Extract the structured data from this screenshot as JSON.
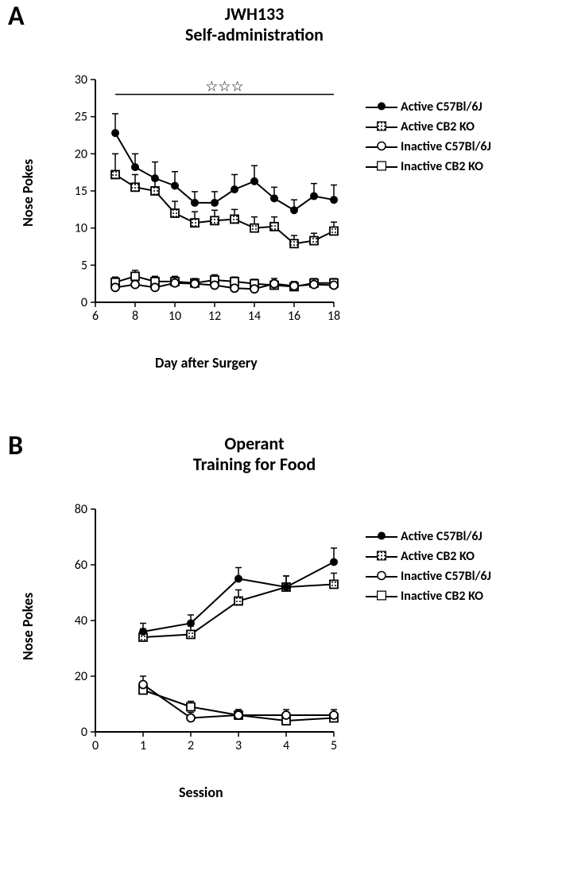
{
  "panelA": {
    "label": "A",
    "label_fontsize": 34,
    "title_line1": "JWH133",
    "title_line2": "Self-administration",
    "title_fontsize": 22,
    "xlabel": "Day after Surgery",
    "ylabel": "Nose Pokes",
    "label_fontsize_axis": 18,
    "tick_fontsize": 16,
    "xlim": [
      6,
      18
    ],
    "ylim": [
      0,
      30
    ],
    "xticks": [
      6,
      8,
      10,
      12,
      14,
      16,
      18
    ],
    "yticks": [
      0,
      5,
      10,
      15,
      20,
      25,
      30
    ],
    "sig_label": "☆☆☆",
    "sig_y": 28,
    "sig_x_start": 7,
    "sig_x_end": 18,
    "legend_fontsize": 16,
    "legend_items": [
      {
        "label": "Active C57Bl/6J",
        "marker": "circle-filled"
      },
      {
        "label": "Active CB2 KO",
        "marker": "square-hatched"
      },
      {
        "label": "Inactive C57Bl/6J",
        "marker": "circle-open"
      },
      {
        "label": "Inactive CB2 KO",
        "marker": "square-open"
      }
    ],
    "series": {
      "active_c57": {
        "marker": "circle-filled",
        "x": [
          7,
          8,
          9,
          10,
          11,
          12,
          13,
          14,
          15,
          16,
          17,
          18
        ],
        "y": [
          22.8,
          18.2,
          16.7,
          15.7,
          13.4,
          13.4,
          15.2,
          16.3,
          14.0,
          12.4,
          14.3,
          13.8
        ],
        "err": [
          2.6,
          1.8,
          2.2,
          1.9,
          1.5,
          1.5,
          2.0,
          2.1,
          1.5,
          1.4,
          1.7,
          2.0
        ]
      },
      "active_cb2": {
        "marker": "square-hatched",
        "x": [
          7,
          8,
          9,
          10,
          11,
          12,
          13,
          14,
          15,
          16,
          17,
          18
        ],
        "y": [
          17.2,
          15.5,
          15.0,
          12.0,
          10.7,
          11.0,
          11.2,
          10.0,
          10.2,
          7.9,
          8.3,
          9.6
        ],
        "err": [
          2.8,
          1.7,
          1.4,
          1.6,
          1.5,
          1.4,
          1.3,
          1.5,
          1.3,
          1.1,
          1.0,
          1.2
        ]
      },
      "inactive_c57": {
        "marker": "circle-open",
        "x": [
          7,
          8,
          9,
          10,
          11,
          12,
          13,
          14,
          15,
          16,
          17,
          18
        ],
        "y": [
          2.0,
          2.4,
          2.0,
          2.6,
          2.5,
          2.3,
          1.9,
          1.8,
          2.5,
          2.2,
          2.4,
          2.3
        ],
        "err": [
          0.7,
          0.6,
          0.6,
          0.7,
          0.6,
          0.6,
          0.6,
          0.5,
          0.7,
          0.6,
          0.6,
          0.6
        ]
      },
      "inactive_cb2": {
        "marker": "square-open",
        "x": [
          7,
          8,
          9,
          10,
          11,
          12,
          13,
          14,
          15,
          16,
          17,
          18
        ],
        "y": [
          2.7,
          3.5,
          2.8,
          2.8,
          2.6,
          3.0,
          2.8,
          2.5,
          2.3,
          2.1,
          2.6,
          2.6
        ],
        "err": [
          0.7,
          0.8,
          0.7,
          0.7,
          0.6,
          0.7,
          0.6,
          0.6,
          0.6,
          0.6,
          0.6,
          0.6
        ]
      }
    },
    "axis_color": "#000000",
    "line_color": "#000000",
    "marker_size": 10,
    "line_width": 2
  },
  "panelB": {
    "label": "B",
    "label_fontsize": 34,
    "title_line1": "Operant",
    "title_line2": "Training for Food",
    "title_fontsize": 22,
    "xlabel": "Session",
    "ylabel": "Nose Pokes",
    "label_fontsize_axis": 18,
    "tick_fontsize": 16,
    "xlim": [
      0,
      5
    ],
    "ylim": [
      0,
      80
    ],
    "xticks": [
      0,
      1,
      2,
      3,
      4,
      5
    ],
    "yticks": [
      0,
      20,
      40,
      60,
      80
    ],
    "legend_fontsize": 16,
    "legend_items": [
      {
        "label": "Active C57Bl/6J",
        "marker": "circle-filled"
      },
      {
        "label": "Active CB2 KO",
        "marker": "square-hatched"
      },
      {
        "label": "Inactive C57Bl/6J",
        "marker": "circle-open"
      },
      {
        "label": "Inactive CB2 KO",
        "marker": "square-open"
      }
    ],
    "series": {
      "active_c57": {
        "marker": "circle-filled",
        "x": [
          1,
          2,
          3,
          4,
          5
        ],
        "y": [
          36,
          39,
          55,
          52,
          61
        ],
        "err": [
          3,
          3,
          4,
          4,
          5
        ]
      },
      "active_cb2": {
        "marker": "square-hatched",
        "x": [
          1,
          2,
          3,
          4,
          5
        ],
        "y": [
          34,
          35,
          47,
          52,
          53
        ],
        "err": [
          3,
          3,
          4,
          4,
          4
        ]
      },
      "inactive_c57": {
        "marker": "circle-open",
        "x": [
          1,
          2,
          3,
          4,
          5
        ],
        "y": [
          17,
          5,
          6,
          6,
          6
        ],
        "err": [
          3,
          2,
          2,
          2,
          2
        ]
      },
      "inactive_cb2": {
        "marker": "square-open",
        "x": [
          1,
          2,
          3,
          4,
          5
        ],
        "y": [
          15,
          9,
          6,
          4,
          5
        ],
        "err": [
          3,
          2,
          2,
          2,
          2
        ]
      }
    },
    "axis_color": "#000000",
    "line_color": "#000000",
    "marker_size": 10,
    "line_width": 2
  }
}
